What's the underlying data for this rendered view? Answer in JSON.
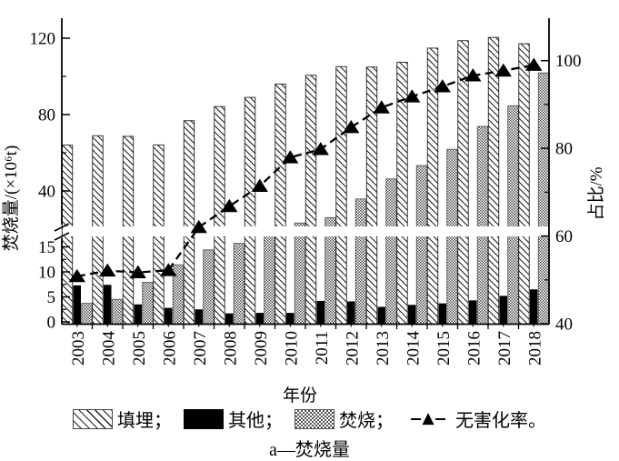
{
  "figure": {
    "caption": "a—焚烧量"
  },
  "legend": {
    "items": [
      {
        "label": "填埋；",
        "swatch": "diagonal-hatch"
      },
      {
        "label": "其他；",
        "swatch": "solid-black"
      },
      {
        "label": "焚烧；",
        "swatch": "checkerboard"
      },
      {
        "label": "无害化率。",
        "swatch": "dash-triangle-line",
        "marker_glyph": "▲"
      }
    ]
  },
  "chart_data": {
    "type": "bar",
    "subtype": "grouped bars with overlaid dashed line, dual y-axes, broken left axis",
    "title": "",
    "categories": [
      "2003",
      "2004",
      "2005",
      "2006",
      "2007",
      "2008",
      "2009",
      "2010",
      "2011",
      "2012",
      "2013",
      "2014",
      "2015",
      "2016",
      "2017",
      "2018"
    ],
    "series": [
      {
        "name": "填埋",
        "type": "bar",
        "pattern": "diagonal-hatch",
        "axis": "left",
        "values": [
          64.0,
          68.9,
          68.6,
          64.1,
          76.8,
          84.2,
          89.0,
          96.0,
          100.6,
          105.1,
          104.9,
          107.4,
          114.8,
          118.7,
          120.4,
          117.1
        ]
      },
      {
        "name": "其他",
        "type": "bar",
        "pattern": "solid-black",
        "axis": "left",
        "values": [
          7.3,
          7.4,
          3.5,
          2.8,
          2.5,
          1.7,
          1.8,
          1.8,
          4.2,
          4.1,
          3.0,
          3.4,
          3.7,
          4.3,
          5.2,
          6.5
        ]
      },
      {
        "name": "焚烧",
        "type": "bar",
        "pattern": "checkerboard",
        "axis": "left",
        "values": [
          3.7,
          4.5,
          7.9,
          11.4,
          14.4,
          15.7,
          21.0,
          23.2,
          26.0,
          35.8,
          46.3,
          53.3,
          61.8,
          73.8,
          84.6,
          101.8
        ]
      },
      {
        "name": "无害化率",
        "type": "line",
        "axis": "right",
        "marker": "filled-triangle",
        "line_style": "dashed",
        "values": [
          50.8,
          52.1,
          51.7,
          52.2,
          62.0,
          66.8,
          71.4,
          77.9,
          79.8,
          84.8,
          89.3,
          91.8,
          94.1,
          96.6,
          97.7,
          99.0
        ]
      }
    ],
    "x_axis": {
      "title": "年份"
    },
    "y_left": {
      "title": "焚烧量/(×10⁶t)",
      "axis_break": true,
      "lower_ticks": [
        0,
        5,
        10,
        15
      ],
      "lower_minor_ticks": [
        2.5,
        7.5,
        12.5
      ],
      "lower_range": [
        0,
        17.5
      ],
      "upper_ticks": [
        40,
        80,
        120
      ],
      "upper_minor_ticks": [
        60,
        100
      ],
      "upper_range": [
        20,
        130
      ]
    },
    "y_right": {
      "title": "占比/%",
      "ticks": [
        40,
        60,
        80,
        100
      ],
      "minor_ticks": [
        50,
        70,
        90
      ],
      "range": [
        40,
        110
      ]
    },
    "grid": false,
    "legend_position": "bottom"
  }
}
